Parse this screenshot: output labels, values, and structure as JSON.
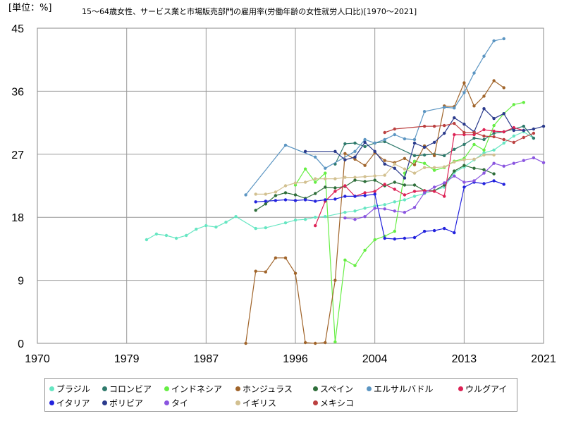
{
  "chart_data": {
    "type": "line",
    "title": "15～64歳女性、サービス業と市場販売部門の雇用率(労働年齢の女性就労人口比)[1970～2021]",
    "unit_label": "[単位：%]",
    "xlim": [
      1970,
      2021
    ],
    "ylim": [
      0,
      45
    ],
    "x_ticks": [
      "1970",
      "1979",
      "1987",
      "1996",
      "2004",
      "2013",
      "2021"
    ],
    "y_ticks": [
      "0",
      "9",
      "18",
      "27",
      "36",
      "45"
    ],
    "grid": true,
    "legend_position": "bottom",
    "series": [
      {
        "name": "ブラジル",
        "color": "#66e6c2",
        "points": [
          [
            1981,
            14.8
          ],
          [
            1982,
            15.6
          ],
          [
            1983,
            15.4
          ],
          [
            1984,
            15.0
          ],
          [
            1985,
            15.4
          ],
          [
            1986,
            16.3
          ],
          [
            1987,
            16.8
          ],
          [
            1988,
            16.6
          ],
          [
            1989,
            17.3
          ],
          [
            1990,
            18.1
          ],
          [
            1992,
            16.4
          ],
          [
            1993,
            16.5
          ],
          [
            1995,
            17.2
          ],
          [
            1996,
            17.6
          ],
          [
            1997,
            17.7
          ],
          [
            1998,
            18.0
          ],
          [
            1999,
            18.1
          ],
          [
            2001,
            18.7
          ],
          [
            2002,
            18.9
          ],
          [
            2003,
            19.3
          ],
          [
            2004,
            19.6
          ],
          [
            2005,
            19.8
          ],
          [
            2006,
            20.2
          ],
          [
            2007,
            20.5
          ],
          [
            2008,
            21.0
          ],
          [
            2009,
            21.4
          ],
          [
            2011,
            22.3
          ],
          [
            2012,
            24.4
          ],
          [
            2013,
            25.2
          ],
          [
            2014,
            26.2
          ],
          [
            2015,
            27.2
          ],
          [
            2016,
            27.6
          ],
          [
            2017,
            28.6
          ],
          [
            2018,
            29.6
          ],
          [
            2019,
            30.2
          ],
          [
            2020,
            29.3
          ]
        ]
      },
      {
        "name": "コロンビア",
        "color": "#2f7a6c",
        "points": [
          [
            2000,
            25.6
          ],
          [
            2001,
            28.5
          ],
          [
            2002,
            28.6
          ],
          [
            2003,
            28.1
          ],
          [
            2004,
            28.6
          ],
          [
            2005,
            28.8
          ],
          [
            2008,
            26.8
          ],
          [
            2009,
            26.9
          ],
          [
            2010,
            27.0
          ],
          [
            2011,
            26.8
          ],
          [
            2012,
            27.7
          ],
          [
            2013,
            28.4
          ],
          [
            2014,
            29.3
          ],
          [
            2015,
            29.1
          ],
          [
            2016,
            30.0
          ],
          [
            2017,
            30.2
          ],
          [
            2018,
            30.6
          ],
          [
            2019,
            31.0
          ],
          [
            2020,
            29.3
          ]
        ]
      },
      {
        "name": "インドネシア",
        "color": "#66ee44",
        "points": [
          [
            1996,
            22.6
          ],
          [
            1997,
            24.9
          ],
          [
            1998,
            23.0
          ],
          [
            1999,
            24.3
          ],
          [
            2000,
            0.2
          ],
          [
            2001,
            11.9
          ],
          [
            2002,
            11.1
          ],
          [
            2003,
            13.3
          ],
          [
            2004,
            14.8
          ],
          [
            2005,
            15.3
          ],
          [
            2006,
            16.0
          ],
          [
            2007,
            24.3
          ],
          [
            2008,
            26.0
          ],
          [
            2009,
            25.7
          ],
          [
            2010,
            24.7
          ],
          [
            2011,
            25.1
          ],
          [
            2012,
            26.0
          ],
          [
            2013,
            26.4
          ],
          [
            2014,
            28.4
          ],
          [
            2015,
            27.6
          ],
          [
            2016,
            31.1
          ],
          [
            2017,
            32.8
          ],
          [
            2018,
            34.1
          ],
          [
            2019,
            34.4
          ]
        ]
      },
      {
        "name": "ホンジュラス",
        "color": "#a0642a",
        "points": [
          [
            1991,
            0
          ],
          [
            1992,
            10.3
          ],
          [
            1993,
            10.2
          ],
          [
            1994,
            12.2
          ],
          [
            1995,
            12.2
          ],
          [
            1996,
            10.0
          ],
          [
            1997,
            0.1
          ],
          [
            1998,
            0
          ],
          [
            1999,
            0.1
          ],
          [
            2000,
            9.0
          ],
          [
            2001,
            27.1
          ],
          [
            2002,
            26.3
          ],
          [
            2003,
            25.4
          ],
          [
            2004,
            27.2
          ],
          [
            2005,
            26.1
          ],
          [
            2006,
            25.8
          ],
          [
            2007,
            26.4
          ],
          [
            2008,
            25.5
          ],
          [
            2009,
            28.2
          ],
          [
            2010,
            26.8
          ],
          [
            2011,
            33.9
          ],
          [
            2012,
            33.8
          ],
          [
            2013,
            37.2
          ],
          [
            2014,
            33.9
          ],
          [
            2015,
            35.3
          ],
          [
            2016,
            37.5
          ],
          [
            2017,
            36.5
          ]
        ]
      },
      {
        "name": "スペイン",
        "color": "#2e6e3a",
        "points": [
          [
            1992,
            19.0
          ],
          [
            1993,
            19.9
          ],
          [
            1994,
            21.1
          ],
          [
            1995,
            21.5
          ],
          [
            1996,
            21.2
          ],
          [
            1997,
            20.7
          ],
          [
            1998,
            21.4
          ],
          [
            1999,
            22.3
          ],
          [
            2000,
            22.2
          ],
          [
            2001,
            22.4
          ],
          [
            2002,
            23.3
          ],
          [
            2003,
            23.1
          ],
          [
            2004,
            23.3
          ],
          [
            2005,
            22.5
          ],
          [
            2006,
            23.0
          ],
          [
            2007,
            22.6
          ],
          [
            2008,
            22.6
          ],
          [
            2009,
            21.8
          ],
          [
            2010,
            21.8
          ],
          [
            2011,
            22.6
          ],
          [
            2012,
            24.6
          ],
          [
            2013,
            25.4
          ],
          [
            2014,
            25.0
          ],
          [
            2015,
            24.8
          ],
          [
            2016,
            24.2
          ]
        ]
      },
      {
        "name": "エルサルバドル",
        "color": "#5b95c2",
        "points": [
          [
            1991,
            21.2
          ],
          [
            1995,
            28.3
          ],
          [
            1998,
            26.6
          ],
          [
            1999,
            25.0
          ],
          [
            2002,
            27.4
          ],
          [
            2003,
            29.1
          ],
          [
            2004,
            28.6
          ],
          [
            2005,
            29.1
          ],
          [
            2006,
            29.8
          ],
          [
            2007,
            29.2
          ],
          [
            2008,
            29.1
          ],
          [
            2009,
            33.1
          ],
          [
            2011,
            33.7
          ],
          [
            2012,
            33.6
          ],
          [
            2013,
            35.8
          ],
          [
            2014,
            38.6
          ],
          [
            2015,
            41.0
          ],
          [
            2016,
            43.2
          ],
          [
            2017,
            43.5
          ]
        ]
      },
      {
        "name": "ウルグアイ",
        "color": "#dd2255",
        "points": [
          [
            1998,
            16.8
          ],
          [
            1999,
            20.3
          ],
          [
            2000,
            21.7
          ],
          [
            2001,
            22.5
          ],
          [
            2002,
            21.0
          ],
          [
            2003,
            21.5
          ],
          [
            2004,
            21.7
          ],
          [
            2005,
            22.7
          ],
          [
            2006,
            22.0
          ],
          [
            2007,
            21.2
          ],
          [
            2008,
            21.7
          ],
          [
            2009,
            21.8
          ],
          [
            2010,
            21.7
          ],
          [
            2011,
            21.0
          ],
          [
            2012,
            29.8
          ],
          [
            2013,
            29.8
          ],
          [
            2014,
            29.8
          ],
          [
            2015,
            30.5
          ],
          [
            2016,
            30.3
          ],
          [
            2017,
            30.2
          ],
          [
            2018,
            30.8
          ],
          [
            2019,
            30.4
          ]
        ]
      },
      {
        "name": "イタリア",
        "color": "#2222dd",
        "points": [
          [
            1992,
            20.2
          ],
          [
            1993,
            20.3
          ],
          [
            1994,
            20.4
          ],
          [
            1995,
            20.5
          ],
          [
            1996,
            20.4
          ],
          [
            1997,
            20.5
          ],
          [
            1998,
            20.3
          ],
          [
            1999,
            20.5
          ],
          [
            2000,
            20.6
          ],
          [
            2001,
            21.0
          ],
          [
            2002,
            21.0
          ],
          [
            2003,
            21.1
          ],
          [
            2004,
            21.3
          ],
          [
            2005,
            15.0
          ],
          [
            2006,
            14.9
          ],
          [
            2007,
            15.0
          ],
          [
            2008,
            15.1
          ],
          [
            2009,
            16.0
          ],
          [
            2010,
            16.1
          ],
          [
            2011,
            16.4
          ],
          [
            2012,
            15.8
          ],
          [
            2013,
            22.3
          ],
          [
            2014,
            23.0
          ],
          [
            2015,
            22.8
          ],
          [
            2016,
            23.2
          ],
          [
            2017,
            22.7
          ]
        ]
      },
      {
        "name": "ボリビア",
        "color": "#2a3a8c",
        "points": [
          [
            1997,
            27.4
          ],
          [
            2000,
            27.4
          ],
          [
            2001,
            26.2
          ],
          [
            2002,
            26.6
          ],
          [
            2003,
            28.7
          ],
          [
            2004,
            27.4
          ],
          [
            2005,
            25.6
          ],
          [
            2006,
            25.0
          ],
          [
            2007,
            23.6
          ],
          [
            2008,
            28.6
          ],
          [
            2009,
            28.0
          ],
          [
            2010,
            28.7
          ],
          [
            2011,
            30.0
          ],
          [
            2012,
            32.2
          ],
          [
            2013,
            31.3
          ],
          [
            2014,
            30.2
          ],
          [
            2015,
            33.5
          ],
          [
            2016,
            32.1
          ],
          [
            2017,
            32.8
          ],
          [
            2018,
            30.4
          ],
          [
            2019,
            30.4
          ],
          [
            2020,
            30.6
          ],
          [
            2021,
            31.0
          ]
        ]
      },
      {
        "name": "タイ",
        "color": "#8a55e0",
        "points": [
          [
            2001,
            17.9
          ],
          [
            2002,
            17.7
          ],
          [
            2003,
            18.1
          ],
          [
            2004,
            19.3
          ],
          [
            2005,
            19.2
          ],
          [
            2006,
            18.9
          ],
          [
            2007,
            18.7
          ],
          [
            2008,
            19.4
          ],
          [
            2009,
            21.5
          ],
          [
            2010,
            22.3
          ],
          [
            2011,
            22.9
          ],
          [
            2012,
            23.9
          ],
          [
            2013,
            23.0
          ],
          [
            2014,
            23.2
          ],
          [
            2015,
            24.3
          ],
          [
            2016,
            25.7
          ],
          [
            2017,
            25.3
          ],
          [
            2018,
            25.7
          ],
          [
            2019,
            26.1
          ],
          [
            2020,
            26.5
          ],
          [
            2021,
            25.8
          ]
        ]
      },
      {
        "name": "イギリス",
        "color": "#d2c090",
        "points": [
          [
            1992,
            21.3
          ],
          [
            1993,
            21.3
          ],
          [
            1994,
            21.6
          ],
          [
            1995,
            22.5
          ],
          [
            1996,
            22.9
          ],
          [
            1997,
            23.0
          ],
          [
            1998,
            23.5
          ],
          [
            1999,
            23.5
          ],
          [
            2000,
            23.5
          ],
          [
            2001,
            23.7
          ],
          [
            2002,
            23.7
          ],
          [
            2003,
            23.8
          ],
          [
            2004,
            23.9
          ],
          [
            2005,
            24.0
          ],
          [
            2006,
            25.6
          ],
          [
            2007,
            24.9
          ],
          [
            2008,
            24.3
          ],
          [
            2009,
            25.1
          ],
          [
            2010,
            25.1
          ],
          [
            2011,
            25.2
          ],
          [
            2012,
            25.9
          ],
          [
            2013,
            26.2
          ],
          [
            2014,
            26.3
          ],
          [
            2015,
            26.9
          ],
          [
            2016,
            26.9
          ]
        ]
      },
      {
        "name": "メキシコ",
        "color": "#bb4040",
        "points": [
          [
            2005,
            30.1
          ],
          [
            2006,
            30.6
          ],
          [
            2009,
            31.0
          ],
          [
            2010,
            31.0
          ],
          [
            2011,
            31.1
          ],
          [
            2012,
            31.4
          ],
          [
            2013,
            30.1
          ],
          [
            2014,
            30.1
          ],
          [
            2015,
            29.6
          ],
          [
            2016,
            29.5
          ],
          [
            2017,
            29.1
          ],
          [
            2018,
            28.7
          ],
          [
            2019,
            29.4
          ],
          [
            2020,
            30.0
          ]
        ]
      }
    ]
  }
}
